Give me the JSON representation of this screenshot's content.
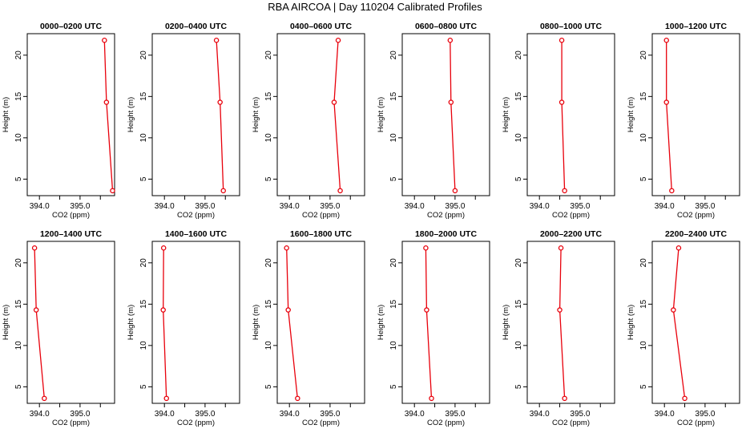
{
  "title": "RBA AIRCOA |  Day 110204  Calibrated Profiles",
  "chart_data": {
    "type": "line",
    "xlabel": "CO2 (ppm)",
    "ylabel": "Height (m)",
    "xlim": [
      393.7,
      395.85
    ],
    "ylim": [
      3.0,
      22.6
    ],
    "xticks": [
      394.0,
      395.0
    ],
    "xtick_labels": [
      "394.0",
      "395.0"
    ],
    "xticks_unlabeled": [
      394.5,
      395.5
    ],
    "yticks": [
      5,
      10,
      15,
      20
    ],
    "ytick_labels": [
      "5",
      "10",
      "15",
      "20"
    ],
    "heights": [
      21.8,
      14.3,
      3.6
    ],
    "line_color": "#e8000b",
    "panels": [
      {
        "title": "0000–0200 UTC",
        "x": [
          395.6,
          395.65,
          395.8
        ]
      },
      {
        "title": "0200–0400 UTC",
        "x": [
          395.28,
          395.37,
          395.45
        ]
      },
      {
        "title": "0400–0600 UTC",
        "x": [
          395.2,
          395.1,
          395.25
        ]
      },
      {
        "title": "0600–0800 UTC",
        "x": [
          394.88,
          394.9,
          395.0
        ]
      },
      {
        "title": "0800–1000 UTC",
        "x": [
          394.55,
          394.55,
          394.62
        ]
      },
      {
        "title": "1000–1200 UTC",
        "x": [
          394.05,
          394.05,
          394.18
        ]
      },
      {
        "title": "1200–1400 UTC",
        "x": [
          393.88,
          393.92,
          394.12
        ]
      },
      {
        "title": "1400–1600 UTC",
        "x": [
          393.98,
          393.97,
          394.05
        ]
      },
      {
        "title": "1600–1800 UTC",
        "x": [
          393.93,
          393.97,
          394.2
        ]
      },
      {
        "title": "1800–2000 UTC",
        "x": [
          394.28,
          394.3,
          394.42
        ]
      },
      {
        "title": "2000–2200 UTC",
        "x": [
          394.53,
          394.5,
          394.62
        ]
      },
      {
        "title": "2200–2400 UTC",
        "x": [
          394.35,
          394.22,
          394.5
        ]
      }
    ]
  }
}
